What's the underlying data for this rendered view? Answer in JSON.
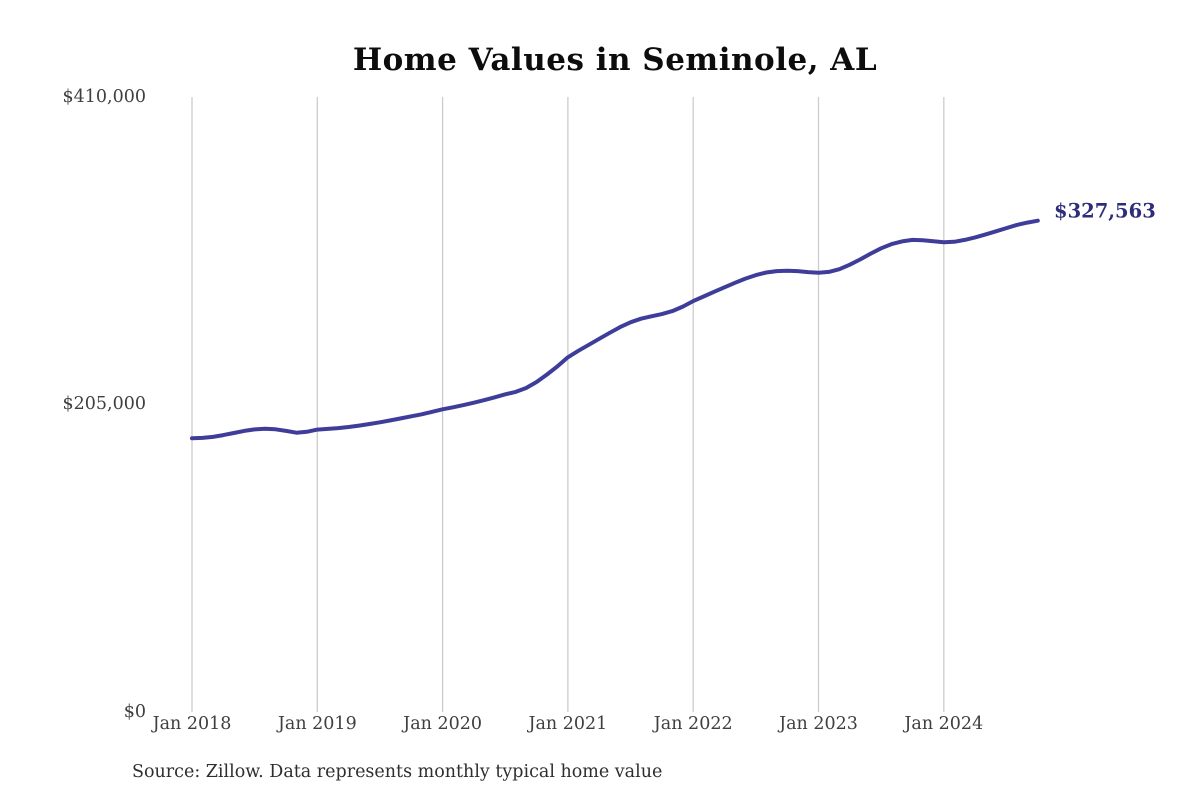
{
  "title": "Home Values in Seminole, AL",
  "source_note": "Source: Zillow. Data represents monthly typical home value",
  "end_value_label": "$327,563",
  "colors": {
    "background": "#ffffff",
    "line": "#3e3e9a",
    "end_label": "#2d2d7b",
    "gridline": "#cccccc",
    "axis_text": "#3f3f3f",
    "title_text": "#0d0d0d"
  },
  "chart_data": {
    "type": "line",
    "title": "Home Values in Seminole, AL",
    "xlabel": "",
    "ylabel": "",
    "ylim": [
      0,
      410000
    ],
    "y_tick_labels": [
      "$0",
      "$205,000",
      "$410,000"
    ],
    "y_tick_values": [
      0,
      205000,
      410000
    ],
    "x_tick_labels": [
      "Jan 2018",
      "Jan 2019",
      "Jan 2020",
      "Jan 2021",
      "Jan 2022",
      "Jan 2023",
      "Jan 2024"
    ],
    "x_interval": "monthly",
    "x_range_start": "Jan 2018",
    "x_range_end": "Oct 2024",
    "grid": "vertical-only",
    "legend": "none",
    "final_value": 327563,
    "series": [
      {
        "name": "Typical home value",
        "values": [
          182500,
          182700,
          183400,
          184600,
          186000,
          187400,
          188400,
          188800,
          188500,
          187400,
          186200,
          186800,
          188300,
          188700,
          189300,
          190000,
          190900,
          192000,
          193100,
          194400,
          195700,
          197100,
          198500,
          200100,
          201800,
          203100,
          204600,
          206200,
          207900,
          209800,
          211800,
          213400,
          216000,
          220000,
          225000,
          230500,
          236500,
          240800,
          244800,
          248800,
          252800,
          256600,
          259800,
          262200,
          263800,
          265300,
          267300,
          270300,
          273900,
          277000,
          280100,
          283100,
          286100,
          288900,
          291300,
          293000,
          293900,
          294200,
          293900,
          293300,
          292800,
          293400,
          295200,
          298200,
          301700,
          305600,
          309100,
          311900,
          313700,
          314700,
          314500,
          313800,
          313100,
          313500,
          314700,
          316400,
          318400,
          320500,
          322600,
          324700,
          326300,
          327563
        ]
      }
    ]
  }
}
